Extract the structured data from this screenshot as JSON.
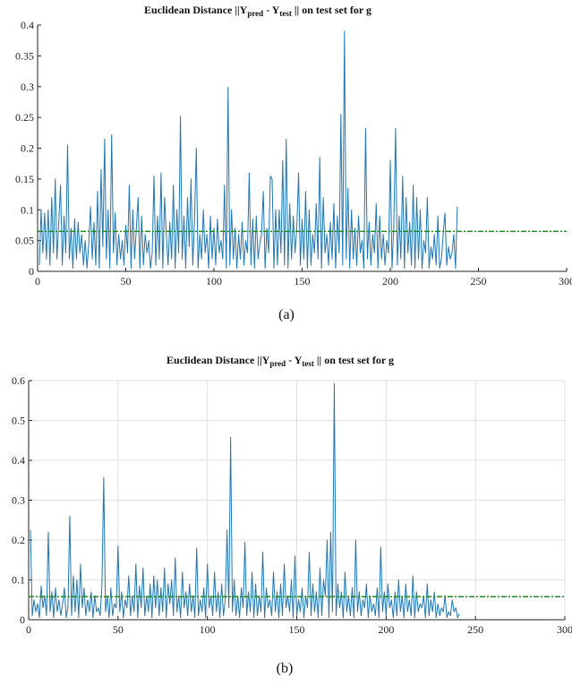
{
  "figure": {
    "panels": [
      {
        "caption": "(a)",
        "title": {
          "prefix": "Euclidean Distance ||Y",
          "sub1": "pred",
          "mid": "  - Y",
          "sub2": "test",
          "suffix": " || on test set for g"
        }
      },
      {
        "caption": "(b)",
        "title": {
          "prefix": "Euclidean Distance ||Y",
          "sub1": "pred",
          "mid": "  - Y",
          "sub2": "test",
          "suffix": " || on test set for g"
        }
      }
    ]
  },
  "colors": {
    "series": "#1f77b4",
    "threshold": "#228b22",
    "grid": "#e0e0e0",
    "axis": "#222222"
  },
  "chart_data": [
    {
      "type": "line",
      "title": "Euclidean Distance ||Ypred - Ytest|| on test set for g",
      "xlim": [
        0,
        300
      ],
      "ylim": [
        0,
        0.4
      ],
      "xticks": [
        0,
        50,
        100,
        150,
        200,
        250,
        300
      ],
      "yticks": [
        0,
        0.05,
        0.1,
        0.15,
        0.2,
        0.25,
        0.3,
        0.35,
        0.4
      ],
      "grid": false,
      "threshold": 0.065,
      "series": [
        {
          "style": "solid",
          "x_start": 1,
          "values": [
            0.01,
            0.1,
            0.03,
            0.095,
            0.02,
            0.1,
            0.01,
            0.12,
            0.03,
            0.15,
            0.02,
            0.08,
            0.14,
            0.01,
            0.09,
            0.03,
            0.205,
            0.02,
            0.07,
            0.005,
            0.085,
            0.02,
            0.08,
            0.03,
            0.06,
            0.01,
            0.05,
            0.005,
            0.045,
            0.105,
            0.02,
            0.08,
            0.01,
            0.13,
            0.005,
            0.165,
            0.04,
            0.215,
            0.02,
            0.1,
            0.005,
            0.222,
            0.03,
            0.095,
            0.01,
            0.06,
            0.02,
            0.05,
            0.01,
            0.075,
            0.03,
            0.14,
            0.005,
            0.1,
            0.02,
            0.07,
            0.12,
            0.005,
            0.09,
            0.01,
            0.06,
            0.03,
            0.05,
            0.005,
            0.03,
            0.155,
            0.01,
            0.09,
            0.02,
            0.16,
            0.005,
            0.12,
            0.06,
            0.01,
            0.08,
            0.02,
            0.14,
            0.005,
            0.1,
            0.03,
            0.252,
            0.02,
            0.09,
            0.005,
            0.12,
            0.04,
            0.15,
            0.01,
            0.085,
            0.2,
            0.005,
            0.06,
            0.02,
            0.1,
            0.03,
            0.06,
            0.005,
            0.09,
            0.02,
            0.07,
            0.01,
            0.085,
            0.03,
            0.05,
            0.02,
            0.14,
            0.005,
            0.299,
            0.01,
            0.1,
            0.02,
            0.07,
            0.005,
            0.06,
            0.02,
            0.08,
            0.01,
            0.05,
            0.03,
            0.16,
            0.01,
            0.085,
            0.005,
            0.09,
            0.02,
            0.045,
            0.06,
            0.13,
            0.005,
            0.07,
            0.03,
            0.155,
            0.15,
            0.005,
            0.1,
            0.01,
            0.1,
            0.03,
            0.18,
            0.01,
            0.215,
            0.005,
            0.11,
            0.02,
            0.09,
            0.03,
            0.07,
            0.16,
            0.01,
            0.085,
            0.02,
            0.13,
            0.005,
            0.1,
            0.01,
            0.06,
            0.03,
            0.11,
            0.02,
            0.185,
            0.005,
            0.12,
            0.03,
            0.06,
            0.01,
            0.08,
            0.02,
            0.11,
            0.005,
            0.09,
            0.03,
            0.255,
            0.01,
            0.39,
            0.02,
            0.135,
            0.005,
            0.1,
            0.02,
            0.07,
            0.01,
            0.09,
            0.03,
            0.05,
            0.005,
            0.232,
            0.02,
            0.08,
            0.01,
            0.06,
            0.03,
            0.11,
            0.005,
            0.09,
            0.02,
            0.06,
            0.01,
            0.05,
            0.03,
            0.18,
            0.005,
            0.075,
            0.232,
            0.01,
            0.09,
            0.02,
            0.155,
            0.005,
            0.12,
            0.03,
            0.08,
            0.01,
            0.14,
            0.005,
            0.12,
            0.02,
            0.1,
            0.005,
            0.05,
            0.03,
            0.12,
            0.005,
            0.04,
            0.02,
            0.06,
            0.01,
            0.09,
            0.005,
            0.02,
            0.06,
            0.095,
            0.01,
            0.04,
            0.02,
            0.03,
            0.06,
            0.005,
            0.105
          ]
        }
      ]
    },
    {
      "type": "line",
      "title": "Euclidean Distance ||Ypred - Ytest|| on test set for g",
      "xlim": [
        0,
        300
      ],
      "ylim": [
        0,
        0.6
      ],
      "xticks": [
        0,
        50,
        100,
        150,
        200,
        250,
        300
      ],
      "yticks": [
        0,
        0.1,
        0.2,
        0.3,
        0.4,
        0.5,
        0.6
      ],
      "grid": true,
      "threshold": 0.058,
      "series": [
        {
          "style": "solid",
          "x_start": 1,
          "values": [
            0.225,
            0.01,
            0.05,
            0.02,
            0.04,
            0.005,
            0.085,
            0.03,
            0.06,
            0.01,
            0.22,
            0.02,
            0.07,
            0.005,
            0.08,
            0.02,
            0.05,
            0.01,
            0.04,
            0.08,
            0.005,
            0.03,
            0.26,
            0.01,
            0.11,
            0.02,
            0.1,
            0.005,
            0.14,
            0.03,
            0.08,
            0.01,
            0.05,
            0.02,
            0.07,
            0.005,
            0.06,
            0.02,
            0.03,
            0.01,
            0.085,
            0.357,
            0.02,
            0.06,
            0.005,
            0.08,
            0.01,
            0.04,
            0.03,
            0.185,
            0.02,
            0.07,
            0.005,
            0.05,
            0.03,
            0.11,
            0.01,
            0.06,
            0.02,
            0.14,
            0.005,
            0.085,
            0.03,
            0.13,
            0.01,
            0.06,
            0.02,
            0.09,
            0.005,
            0.11,
            0.03,
            0.1,
            0.01,
            0.08,
            0.02,
            0.13,
            0.005,
            0.09,
            0.04,
            0.1,
            0.01,
            0.155,
            0.02,
            0.06,
            0.005,
            0.12,
            0.03,
            0.07,
            0.01,
            0.09,
            0.02,
            0.06,
            0.005,
            0.18,
            0.01,
            0.05,
            0.02,
            0.08,
            0.005,
            0.14,
            0.03,
            0.06,
            0.01,
            0.12,
            0.02,
            0.07,
            0.005,
            0.09,
            0.01,
            0.05,
            0.225,
            0.03,
            0.458,
            0.02,
            0.1,
            0.01,
            0.06,
            0.005,
            0.08,
            0.03,
            0.195,
            0.01,
            0.07,
            0.02,
            0.12,
            0.005,
            0.09,
            0.01,
            0.06,
            0.02,
            0.17,
            0.005,
            0.08,
            0.03,
            0.05,
            0.01,
            0.12,
            0.02,
            0.07,
            0.005,
            0.09,
            0.01,
            0.14,
            0.03,
            0.06,
            0.02,
            0.1,
            0.005,
            0.16,
            0.01,
            0.05,
            0.02,
            0.08,
            0.005,
            0.06,
            0.03,
            0.17,
            0.01,
            0.09,
            0.02,
            0.07,
            0.005,
            0.13,
            0.01,
            0.1,
            0.06,
            0.2,
            0.005,
            0.22,
            0.02,
            0.593,
            0.01,
            0.09,
            0.03,
            0.07,
            0.005,
            0.12,
            0.02,
            0.06,
            0.01,
            0.08,
            0.005,
            0.2,
            0.02,
            0.07,
            0.01,
            0.05,
            0.03,
            0.09,
            0.005,
            0.06,
            0.02,
            0.04,
            0.01,
            0.08,
            0.005,
            0.183,
            0.02,
            0.07,
            0.01,
            0.09,
            0.03,
            0.05,
            0.005,
            0.07,
            0.01,
            0.1,
            0.02,
            0.06,
            0.005,
            0.09,
            0.02,
            0.05,
            0.01,
            0.11,
            0.005,
            0.07,
            0.02,
            0.04,
            0.03,
            0.06,
            0.005,
            0.09,
            0.01,
            0.05,
            0.02,
            0.07,
            0.005,
            0.04,
            0.01,
            0.03,
            0.02,
            0.06,
            0.005,
            0.02,
            0.01,
            0.05,
            0.02,
            0.03,
            0.005,
            0.015
          ]
        }
      ]
    }
  ]
}
